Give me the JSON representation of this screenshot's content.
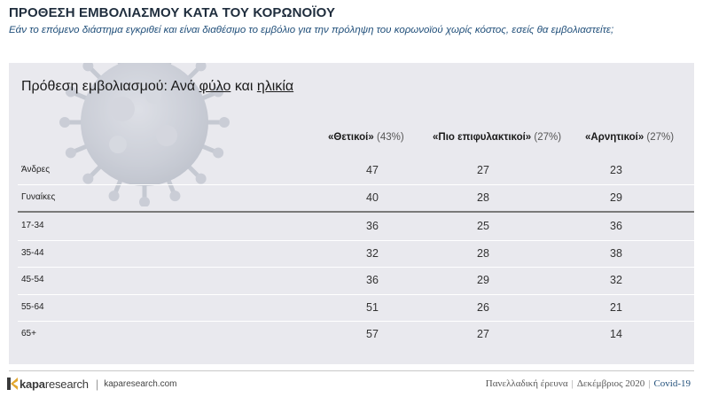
{
  "header": {
    "title": "ΠΡΟΘΕΣΗ ΕΜΒΟΛΙΑΣΜΟΥ ΚΑΤΑ ΤΟΥ ΚΟΡΩΝΟΪΟΥ",
    "subtitle": "Εάν το επόμενο διάστημα εγκριθεί και είναι διαθέσιμο το εμβόλιο για την πρόληψη του κορωνοϊού χωρίς κόστος, εσείς θα εμβολιαστείτε;"
  },
  "section": {
    "title_prefix": "Πρόθεση εμβολιασμού: Ανά ",
    "title_gender": "φύλο",
    "title_and": " και ",
    "title_age": "ηλικία"
  },
  "chart_data": {
    "type": "table",
    "columns": [
      {
        "name": "«Θετικοί»",
        "share": "(43%)"
      },
      {
        "name": "«Πιο επιφυλακτικοί»",
        "share": "(27%)"
      },
      {
        "name": "«Αρνητικοί»",
        "share": "(27%)"
      }
    ],
    "rows": [
      {
        "label": "Άνδρες",
        "values": [
          "47",
          "27",
          "23"
        ]
      },
      {
        "label": "Γυναίκες",
        "values": [
          "40",
          "28",
          "29"
        ]
      },
      {
        "label": "17-34",
        "values": [
          "36",
          "25",
          "36"
        ]
      },
      {
        "label": "35-44",
        "values": [
          "32",
          "28",
          "38"
        ]
      },
      {
        "label": "45-54",
        "values": [
          "36",
          "29",
          "32"
        ]
      },
      {
        "label": "55-64",
        "values": [
          "51",
          "26",
          "21"
        ]
      },
      {
        "label": "65+",
        "values": [
          "57",
          "27",
          "14"
        ]
      }
    ]
  },
  "footer": {
    "logo_kapa": "kapa",
    "logo_research": "research",
    "logo_separator": "|",
    "url": "kaparesearch.com",
    "survey": "Πανελλαδική έρευνα",
    "sep": "|",
    "date": "Δεκέμβριος 2020",
    "topic": "Covid-19"
  },
  "colors": {
    "title": "#1f2d3d",
    "subtitle": "#1f4e79",
    "panel_bg": "#e9e9ee",
    "logo_accent": "#e2a72e"
  }
}
